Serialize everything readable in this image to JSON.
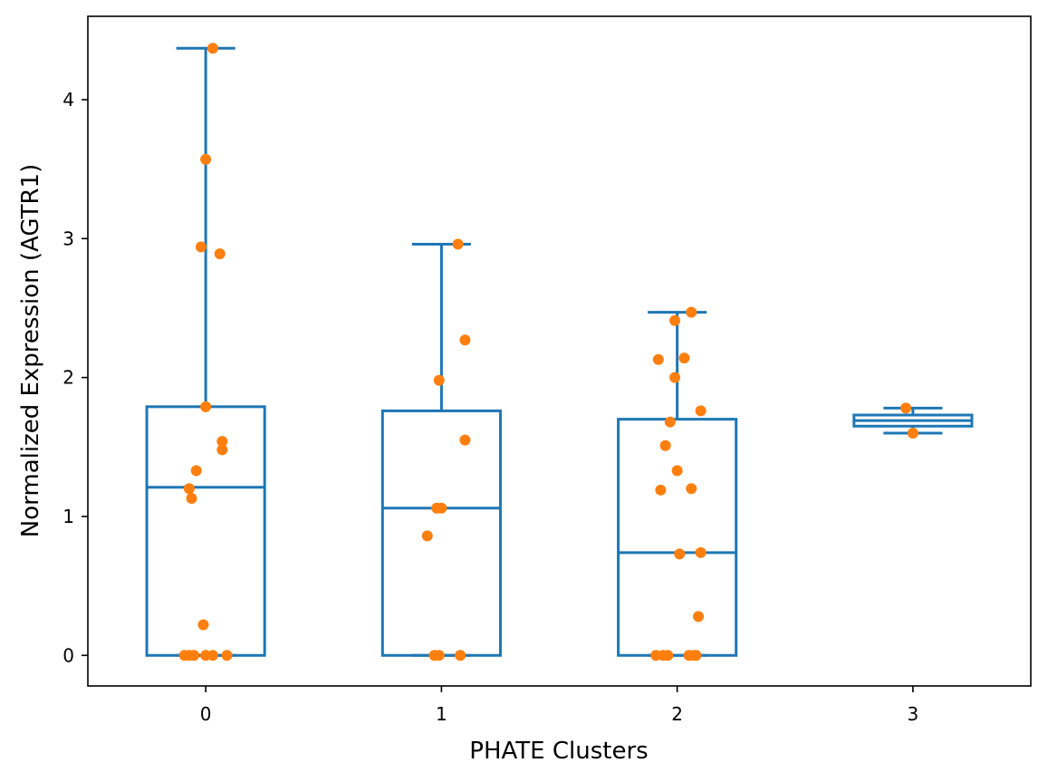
{
  "chart_data": {
    "type": "box",
    "title": "",
    "xlabel": "PHATE Clusters",
    "ylabel": "Normalized Expression (AGTR1)",
    "categories": [
      "0",
      "1",
      "2",
      "3"
    ],
    "yticks": [
      0,
      1,
      2,
      3,
      4
    ],
    "xlim": [
      -0.5,
      3.5
    ],
    "ylim": [
      -0.22,
      4.6
    ],
    "grid": false,
    "box_color": "#1f77b4",
    "point_color": "#ff7f0e",
    "boxes": [
      {
        "cluster": "0",
        "q1": 0.0,
        "median": 1.21,
        "q3": 1.79,
        "whisker_low": 0.0,
        "whisker_high": 4.37
      },
      {
        "cluster": "1",
        "q1": 0.0,
        "median": 1.06,
        "q3": 1.76,
        "whisker_low": 0.0,
        "whisker_high": 2.96
      },
      {
        "cluster": "2",
        "q1": 0.0,
        "median": 0.74,
        "q3": 1.7,
        "whisker_low": 0.0,
        "whisker_high": 2.47
      },
      {
        "cluster": "3",
        "q1": 1.65,
        "median": 1.69,
        "q3": 1.73,
        "whisker_low": 1.6,
        "whisker_high": 1.78
      }
    ],
    "points": [
      {
        "cluster": "0",
        "values": [
          {
            "x": 0.03,
            "y": 4.37
          },
          {
            "x": 0.0,
            "y": 3.57
          },
          {
            "x": -0.02,
            "y": 2.94
          },
          {
            "x": 0.06,
            "y": 2.89
          },
          {
            "x": 0.0,
            "y": 1.79
          },
          {
            "x": 0.07,
            "y": 1.54
          },
          {
            "x": 0.07,
            "y": 1.48
          },
          {
            "x": -0.04,
            "y": 1.33
          },
          {
            "x": -0.07,
            "y": 1.2
          },
          {
            "x": -0.06,
            "y": 1.13
          },
          {
            "x": -0.01,
            "y": 0.22
          },
          {
            "x": -0.09,
            "y": 0.0
          },
          {
            "x": -0.07,
            "y": 0.0
          },
          {
            "x": -0.05,
            "y": 0.0
          },
          {
            "x": 0.0,
            "y": 0.0
          },
          {
            "x": 0.03,
            "y": 0.0
          },
          {
            "x": 0.09,
            "y": 0.0
          }
        ]
      },
      {
        "cluster": "1",
        "values": [
          {
            "x": 1.07,
            "y": 2.96
          },
          {
            "x": 1.1,
            "y": 2.27
          },
          {
            "x": 0.99,
            "y": 1.98
          },
          {
            "x": 1.1,
            "y": 1.55
          },
          {
            "x": 0.98,
            "y": 1.06
          },
          {
            "x": 1.0,
            "y": 1.06
          },
          {
            "x": 0.94,
            "y": 0.86
          },
          {
            "x": 0.97,
            "y": 0.0
          },
          {
            "x": 0.99,
            "y": 0.0
          },
          {
            "x": 1.08,
            "y": 0.0
          }
        ]
      },
      {
        "cluster": "2",
        "values": [
          {
            "x": 2.06,
            "y": 2.47
          },
          {
            "x": 1.99,
            "y": 2.41
          },
          {
            "x": 1.92,
            "y": 2.13
          },
          {
            "x": 2.03,
            "y": 2.14
          },
          {
            "x": 1.99,
            "y": 2.0
          },
          {
            "x": 2.1,
            "y": 1.76
          },
          {
            "x": 1.97,
            "y": 1.68
          },
          {
            "x": 1.95,
            "y": 1.51
          },
          {
            "x": 2.0,
            "y": 1.33
          },
          {
            "x": 1.93,
            "y": 1.19
          },
          {
            "x": 2.06,
            "y": 1.2
          },
          {
            "x": 2.01,
            "y": 0.73
          },
          {
            "x": 2.1,
            "y": 0.74
          },
          {
            "x": 2.09,
            "y": 0.28
          },
          {
            "x": 1.91,
            "y": 0.0
          },
          {
            "x": 1.94,
            "y": 0.0
          },
          {
            "x": 1.96,
            "y": 0.0
          },
          {
            "x": 2.05,
            "y": 0.0
          },
          {
            "x": 2.07,
            "y": 0.0
          },
          {
            "x": 2.08,
            "y": 0.0
          }
        ]
      },
      {
        "cluster": "3",
        "values": [
          {
            "x": 2.97,
            "y": 1.78
          },
          {
            "x": 3.0,
            "y": 1.6
          }
        ]
      }
    ]
  }
}
